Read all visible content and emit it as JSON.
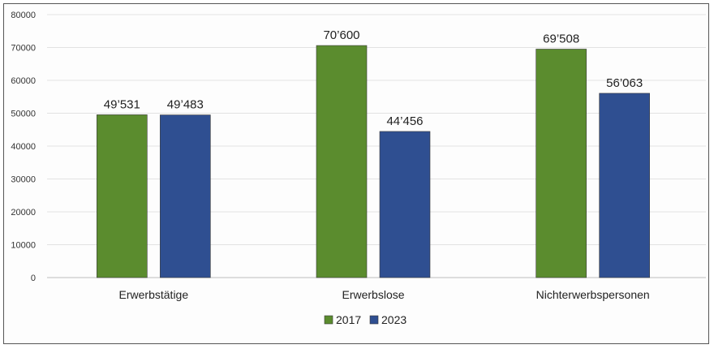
{
  "chart_data": {
    "type": "bar",
    "categories": [
      "Erwerbstätige",
      "Erwerbslose",
      "Nichterwerbspersonen"
    ],
    "series": [
      {
        "name": "2017",
        "values": [
          49531,
          70600,
          69508
        ],
        "labels": [
          "49’531",
          "70’600",
          "69’508"
        ],
        "color": "#5b8c2e"
      },
      {
        "name": "2023",
        "values": [
          49483,
          44456,
          56063
        ],
        "labels": [
          "49’483",
          "44’456",
          "56’063"
        ],
        "color": "#2f4f91"
      }
    ],
    "ylim": [
      0,
      80000
    ],
    "yticks": [
      0,
      10000,
      20000,
      30000,
      40000,
      50000,
      60000,
      70000,
      80000
    ],
    "ytick_labels": [
      "0",
      "10000",
      "20000",
      "30000",
      "40000",
      "50000",
      "60000",
      "70000",
      "80000"
    ],
    "grid": true,
    "legend": "bottom-center",
    "title": "",
    "xlabel": "",
    "ylabel": ""
  }
}
